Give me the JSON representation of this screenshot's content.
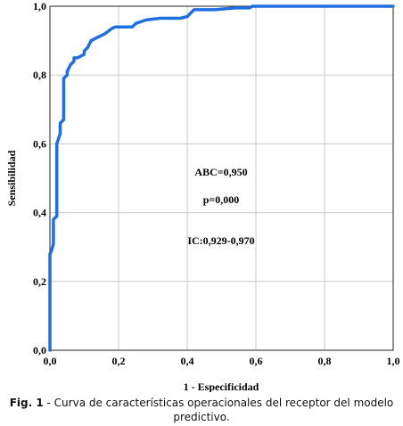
{
  "chart_data": {
    "type": "line",
    "title": "",
    "xlabel": "1 - Especificidad",
    "ylabel": "Sensibilidad",
    "xlim": [
      0,
      1
    ],
    "ylim": [
      0,
      1
    ],
    "x_ticks": [
      "0,0",
      "0,2",
      "0,4",
      "0,6",
      "0,8",
      "1,0"
    ],
    "y_ticks": [
      "0,0",
      "0,2",
      "0,4",
      "0,6",
      "0,8",
      "1,0"
    ],
    "grid": true,
    "line_color": "#1f6fe0",
    "series": [
      {
        "points": [
          [
            0.0,
            0.0
          ],
          [
            0.0,
            0.28
          ],
          [
            0.005,
            0.29
          ],
          [
            0.01,
            0.31
          ],
          [
            0.01,
            0.38
          ],
          [
            0.02,
            0.39
          ],
          [
            0.02,
            0.6
          ],
          [
            0.03,
            0.63
          ],
          [
            0.03,
            0.66
          ],
          [
            0.04,
            0.67
          ],
          [
            0.04,
            0.79
          ],
          [
            0.05,
            0.8
          ],
          [
            0.05,
            0.81
          ],
          [
            0.06,
            0.83
          ],
          [
            0.07,
            0.84
          ],
          [
            0.07,
            0.85
          ],
          [
            0.08,
            0.85
          ],
          [
            0.1,
            0.86
          ],
          [
            0.1,
            0.87
          ],
          [
            0.11,
            0.88
          ],
          [
            0.12,
            0.9
          ],
          [
            0.14,
            0.91
          ],
          [
            0.16,
            0.92
          ],
          [
            0.18,
            0.935
          ],
          [
            0.19,
            0.94
          ],
          [
            0.24,
            0.94
          ],
          [
            0.25,
            0.95
          ],
          [
            0.28,
            0.96
          ],
          [
            0.32,
            0.965
          ],
          [
            0.38,
            0.965
          ],
          [
            0.4,
            0.97
          ],
          [
            0.41,
            0.98
          ],
          [
            0.42,
            0.99
          ],
          [
            0.48,
            0.99
          ],
          [
            0.54,
            0.995
          ],
          [
            0.58,
            0.995
          ],
          [
            0.59,
            1.0
          ],
          [
            1.0,
            1.0
          ]
        ]
      }
    ],
    "annotations": [
      "ABC=0,950",
      "p=0,000",
      "IC:0,929-0,970"
    ]
  },
  "caption": {
    "label": "Fig. 1",
    "text": " - Curva de características operacionales del receptor del modelo predictivo."
  }
}
